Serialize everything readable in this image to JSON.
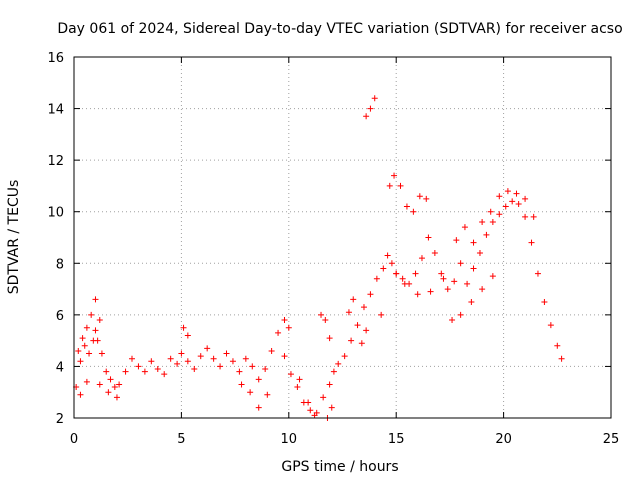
{
  "chart_data": {
    "type": "scatter",
    "title": "Day 061 of 2024, Sidereal Day-to-day VTEC variation (SDTVAR) for receiver acso",
    "xlabel": "GPS time / hours",
    "ylabel": "SDTVAR / TECUs",
    "xlim": [
      0,
      25
    ],
    "ylim": [
      2,
      16
    ],
    "xticks": [
      0,
      5,
      10,
      15,
      20,
      25
    ],
    "yticks": [
      2,
      4,
      6,
      8,
      10,
      12,
      14,
      16
    ],
    "grid": true,
    "marker": "+",
    "color": "#ff0000",
    "series": [
      {
        "name": "main trace",
        "x": [
          0.1,
          0.3,
          0.5,
          0.7,
          0.9,
          1.0,
          1.1,
          1.3,
          1.5,
          1.7,
          1.9,
          2.1,
          2.4,
          2.7,
          3.0,
          3.3,
          3.6,
          3.9,
          4.2,
          4.5,
          4.8,
          5.0,
          5.3,
          5.6,
          5.9,
          6.2,
          6.5,
          6.8,
          7.1,
          7.4,
          7.7,
          8.0,
          8.3,
          8.6,
          8.9,
          9.2,
          9.5,
          9.8,
          10.1,
          10.4,
          10.7,
          11.0,
          11.3,
          11.6,
          11.9,
          12.1,
          12.3,
          12.6,
          12.9,
          13.2,
          13.5,
          13.8,
          14.1,
          14.4,
          14.6,
          14.8,
          15.0,
          15.3,
          15.6,
          15.9,
          16.2,
          16.5,
          16.8,
          17.1,
          17.4,
          17.7,
          18.0,
          18.3,
          18.6,
          18.9,
          19.2,
          19.5,
          19.8,
          20.1,
          20.4,
          20.7,
          21.0,
          21.3,
          21.6,
          21.9,
          22.2,
          22.5,
          22.7
        ],
        "y": [
          3.2,
          4.2,
          4.8,
          4.5,
          5.0,
          5.4,
          5.0,
          4.5,
          3.8,
          3.5,
          3.2,
          3.3,
          3.8,
          4.3,
          4.0,
          3.8,
          4.2,
          3.9,
          3.7,
          4.3,
          4.1,
          4.5,
          4.2,
          3.9,
          4.4,
          4.7,
          4.3,
          4.0,
          4.5,
          4.2,
          3.8,
          4.3,
          4.0,
          3.5,
          3.9,
          4.6,
          5.3,
          4.4,
          3.7,
          3.2,
          2.6,
          2.3,
          2.2,
          2.8,
          3.3,
          3.8,
          4.1,
          4.4,
          5.0,
          5.6,
          6.3,
          6.8,
          7.4,
          7.8,
          8.3,
          8.0,
          7.6,
          7.4,
          7.2,
          7.6,
          8.2,
          9.0,
          8.4,
          7.6,
          7.0,
          7.3,
          8.0,
          7.2,
          7.8,
          8.4,
          9.1,
          9.6,
          9.9,
          10.2,
          10.4,
          10.3,
          9.8,
          8.8,
          7.6,
          6.5,
          5.6,
          4.8,
          4.3
        ]
      },
      {
        "name": "upper branches",
        "x": [
          0.2,
          0.4,
          0.6,
          0.8,
          1.0,
          1.2,
          5.1,
          5.3,
          9.8,
          10.0,
          11.5,
          11.7,
          11.9,
          12.8,
          13.0,
          13.6,
          13.8,
          14.0,
          14.7,
          14.9,
          15.2,
          15.5,
          15.8,
          16.1,
          16.4,
          17.8,
          18.2,
          18.6,
          19.0,
          19.4,
          19.8,
          20.2,
          20.6,
          21.0,
          21.4
        ],
        "y": [
          4.6,
          5.1,
          5.5,
          6.0,
          6.6,
          5.8,
          5.5,
          5.2,
          5.8,
          5.5,
          6.0,
          5.8,
          5.1,
          6.1,
          6.6,
          13.7,
          14.0,
          14.4,
          11.0,
          11.4,
          11.0,
          10.2,
          10.0,
          10.6,
          10.5,
          8.9,
          9.4,
          8.8,
          9.6,
          10.0,
          10.6,
          10.8,
          10.7,
          10.5,
          9.8
        ]
      },
      {
        "name": "lower branches",
        "x": [
          0.3,
          0.6,
          1.2,
          1.6,
          2.0,
          7.8,
          8.2,
          8.6,
          9.0,
          10.5,
          10.9,
          11.2,
          11.8,
          12.0,
          13.4,
          13.6,
          14.3,
          15.0,
          15.4,
          16.0,
          16.6,
          17.2,
          17.6,
          18.0,
          18.5,
          19.0,
          19.5
        ],
        "y": [
          2.9,
          3.4,
          3.3,
          3.0,
          2.8,
          3.3,
          3.0,
          2.4,
          2.9,
          3.5,
          2.6,
          2.1,
          2.0,
          2.4,
          4.9,
          5.4,
          6.0,
          7.6,
          7.2,
          6.8,
          6.9,
          7.4,
          5.8,
          6.0,
          6.5,
          7.0,
          7.5
        ]
      }
    ]
  }
}
